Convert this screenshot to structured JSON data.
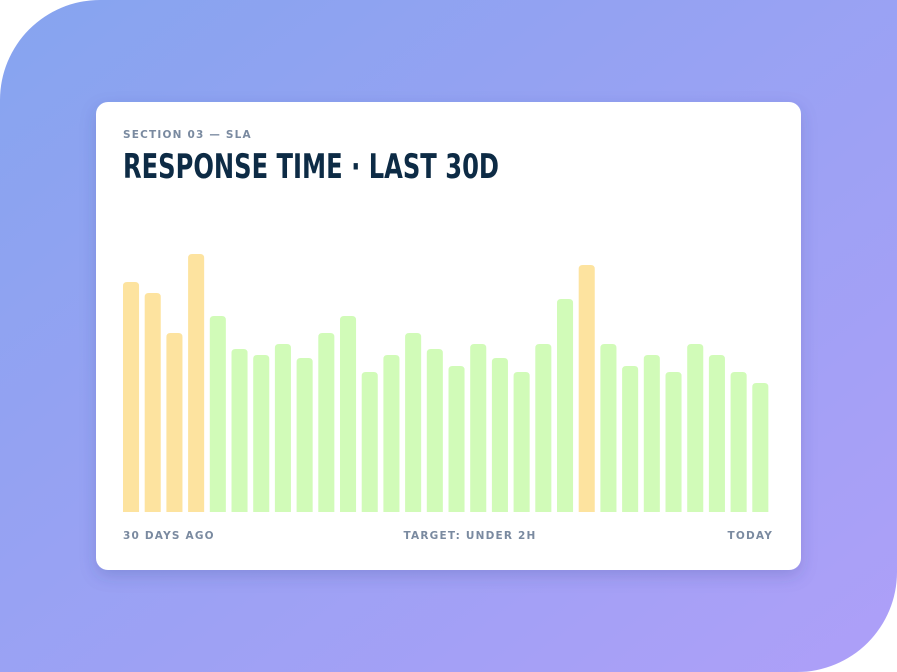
{
  "chart_data": {
    "type": "bar",
    "section": "SECTION 03 — SLA",
    "title": "RESPONSE TIME · LAST 30D",
    "start_label": "30 DAYS AGO",
    "target_label": "TARGET: UNDER 2H",
    "end_label": "TODAY",
    "values": [
      230,
      219,
      179,
      258,
      196,
      163,
      157,
      168,
      154,
      179,
      196,
      140,
      157,
      179,
      163,
      146,
      168,
      154,
      140,
      168,
      213,
      247,
      168,
      146,
      157,
      140,
      168,
      157,
      140,
      129
    ],
    "colors": [
      "#fde39f",
      "#fde39f",
      "#fde39f",
      "#fde39f",
      "#d1fbb8",
      "#d1fbb8",
      "#d1fbb8",
      "#d1fbb8",
      "#d1fbb8",
      "#d1fbb8",
      "#d1fbb8",
      "#d1fbb8",
      "#d1fbb8",
      "#d1fbb8",
      "#d1fbb8",
      "#d1fbb8",
      "#d1fbb8",
      "#d1fbb8",
      "#d1fbb8",
      "#d1fbb8",
      "#d1fbb8",
      "#fde39f",
      "#d1fbb8",
      "#d1fbb8",
      "#d1fbb8",
      "#d1fbb8",
      "#d1fbb8",
      "#d1fbb8",
      "#d1fbb8",
      "#d1fbb8"
    ]
  }
}
